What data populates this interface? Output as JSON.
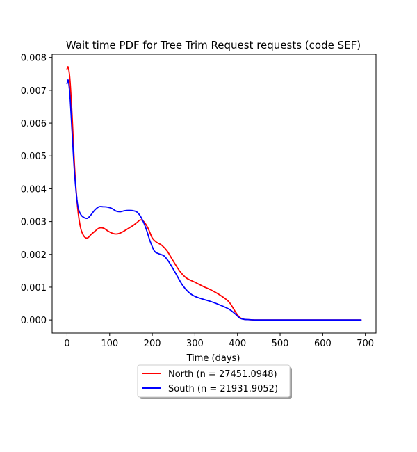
{
  "chart_data": {
    "type": "line",
    "title": "Wait time PDF for Tree Trim Request  requests (code SEF)",
    "xlabel": "Time (days)",
    "ylabel": "",
    "xlim": [
      -35,
      725
    ],
    "ylim": [
      -0.0004,
      0.0081
    ],
    "xticks": [
      0,
      100,
      200,
      300,
      400,
      500,
      600,
      700
    ],
    "yticks": [
      0.0,
      0.001,
      0.002,
      0.003,
      0.004,
      0.005,
      0.006,
      0.007,
      0.008
    ],
    "ytick_labels": [
      "0.000",
      "0.001",
      "0.002",
      "0.003",
      "0.004",
      "0.005",
      "0.006",
      "0.007",
      "0.008"
    ],
    "grid": false,
    "legend_position": "bottom-center",
    "series": [
      {
        "name": "North (n = 27451.0948)",
        "color": "#ff0000",
        "x": [
          0,
          3,
          7,
          12,
          18,
          25,
          32,
          40,
          48,
          56,
          65,
          75,
          85,
          95,
          105,
          115,
          125,
          135,
          145,
          155,
          165,
          172,
          180,
          190,
          200,
          210,
          222,
          235,
          250,
          265,
          280,
          300,
          320,
          340,
          360,
          380,
          395,
          405,
          415,
          425,
          440,
          460,
          500,
          550,
          600,
          650,
          690
        ],
        "y": [
          0.00765,
          0.0077,
          0.0073,
          0.0062,
          0.0046,
          0.0034,
          0.0028,
          0.00255,
          0.0025,
          0.0026,
          0.0027,
          0.0028,
          0.0028,
          0.00272,
          0.00265,
          0.00262,
          0.00265,
          0.00272,
          0.0028,
          0.00288,
          0.00298,
          0.00305,
          0.003,
          0.0028,
          0.0025,
          0.00237,
          0.00228,
          0.0021,
          0.00178,
          0.00148,
          0.00128,
          0.00115,
          0.00102,
          0.0009,
          0.00075,
          0.00055,
          0.00025,
          8e-05,
          2e-05,
          1e-05,
          0.0,
          0.0,
          0.0,
          0.0,
          0.0,
          0.0,
          0.0
        ]
      },
      {
        "name": "South (n = 21931.9052)",
        "color": "#0000ff",
        "x": [
          0,
          3,
          7,
          12,
          18,
          25,
          32,
          40,
          48,
          56,
          65,
          75,
          85,
          95,
          105,
          115,
          125,
          135,
          145,
          155,
          165,
          175,
          185,
          195,
          205,
          215,
          228,
          240,
          255,
          270,
          285,
          300,
          320,
          340,
          360,
          380,
          395,
          405,
          415,
          425,
          440,
          460,
          500,
          550,
          600,
          650,
          690
        ],
        "y": [
          0.0072,
          0.0073,
          0.0068,
          0.0057,
          0.0044,
          0.0035,
          0.00322,
          0.00312,
          0.0031,
          0.0032,
          0.00335,
          0.00345,
          0.00345,
          0.00344,
          0.0034,
          0.00332,
          0.0033,
          0.00333,
          0.00334,
          0.00333,
          0.00328,
          0.0031,
          0.0028,
          0.0024,
          0.0021,
          0.00202,
          0.00195,
          0.00175,
          0.00142,
          0.00108,
          0.00085,
          0.00072,
          0.00063,
          0.00055,
          0.00045,
          0.00033,
          0.00018,
          6e-05,
          2e-05,
          1e-05,
          0.0,
          0.0,
          0.0,
          0.0,
          0.0,
          0.0,
          0.0
        ]
      }
    ]
  }
}
